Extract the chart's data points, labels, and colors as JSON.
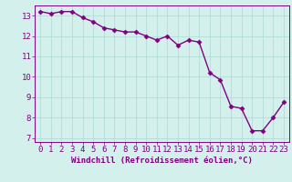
{
  "x": [
    0,
    1,
    2,
    3,
    4,
    5,
    6,
    7,
    8,
    9,
    10,
    11,
    12,
    13,
    14,
    15,
    16,
    17,
    18,
    19,
    20,
    21,
    22,
    23
  ],
  "y": [
    13.2,
    13.1,
    13.2,
    13.2,
    12.9,
    12.7,
    12.4,
    12.3,
    12.2,
    12.2,
    12.0,
    11.8,
    12.0,
    11.55,
    11.8,
    11.7,
    10.2,
    9.85,
    8.55,
    8.45,
    7.35,
    7.35,
    8.0,
    8.75
  ],
  "line_color": "#800080",
  "marker": "D",
  "marker_size": 2.5,
  "bg_color": "#d4f0ec",
  "grid_color": "#aed8d2",
  "xlabel": "Windchill (Refroidissement éolien,°C)",
  "xlabel_color": "#800080",
  "tick_color": "#800080",
  "spine_color": "#800080",
  "ylim": [
    6.8,
    13.5
  ],
  "xlim": [
    -0.5,
    23.5
  ],
  "yticks": [
    7,
    8,
    9,
    10,
    11,
    12,
    13
  ],
  "xticks": [
    0,
    1,
    2,
    3,
    4,
    5,
    6,
    7,
    8,
    9,
    10,
    11,
    12,
    13,
    14,
    15,
    16,
    17,
    18,
    19,
    20,
    21,
    22,
    23
  ],
  "xlabel_fontsize": 6.5,
  "tick_fontsize": 6.5,
  "linewidth": 1.0
}
